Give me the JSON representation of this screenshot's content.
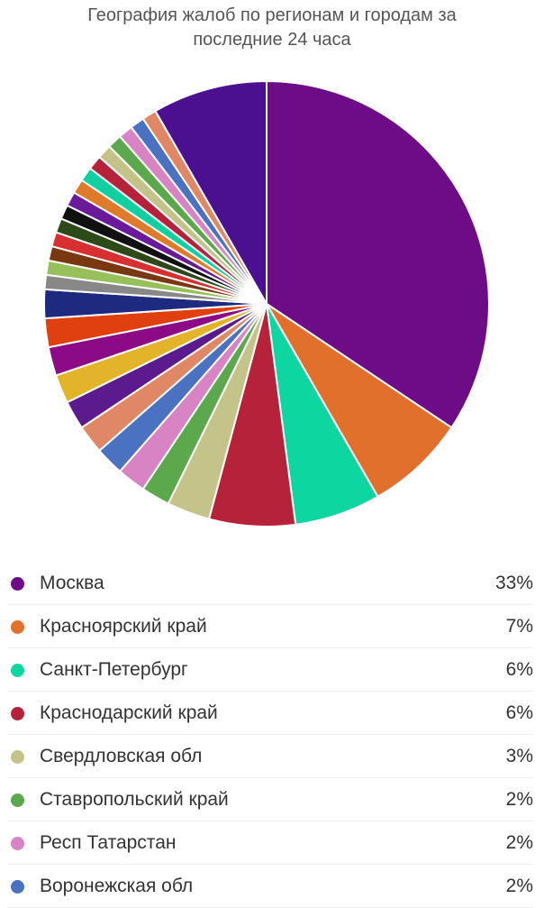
{
  "chart_data": {
    "type": "pie",
    "title": "География жалоб по регионам и городам за последние 24 часа",
    "categories": [
      "Москва",
      "Красноярский край",
      "Санкт-Петербург",
      "Краснодарский край",
      "Свердловская обл",
      "Ставропольский край",
      "Респ Татарстан",
      "Воронежская обл",
      null,
      null,
      null,
      null,
      null,
      null,
      null,
      null,
      null,
      null,
      null,
      null,
      null,
      null,
      null,
      null,
      null,
      null,
      null,
      null,
      null,
      null
    ],
    "values": [
      33,
      7,
      6,
      6,
      3,
      2,
      2,
      2,
      2,
      2,
      2,
      2,
      2,
      2,
      1,
      1,
      1,
      1,
      1,
      1,
      1,
      1,
      1,
      1,
      1,
      1,
      1,
      1,
      1,
      8
    ],
    "value_labels": [
      "33%",
      "7%",
      "6%",
      "6%",
      "3%",
      "2%",
      "2%",
      "2%",
      null,
      null,
      null,
      null,
      null,
      null,
      null,
      null,
      null,
      null,
      null,
      null,
      null,
      null,
      null,
      null,
      null,
      null,
      null,
      null,
      null,
      null
    ],
    "colors": [
      "#6e0b87",
      "#e0702b",
      "#0dd6a0",
      "#b52239",
      "#c4c48a",
      "#5ca94d",
      "#d884c4",
      "#4a72c0",
      "#e08866",
      "#5b1a8d",
      "#e3b32a",
      "#8d0a86",
      "#e0400f",
      "#1d2a80",
      "#888888",
      "#97c05a",
      "#7a3810",
      "#d83030",
      "#2e4a18",
      "#111111",
      "#6a1a9a",
      "#e07a2b",
      "#10d0a0",
      "#b52239",
      "#c4c48a",
      "#5ca94d",
      "#d884c4",
      "#4a72c0",
      "#e08866",
      "#4a1090"
    ]
  }
}
